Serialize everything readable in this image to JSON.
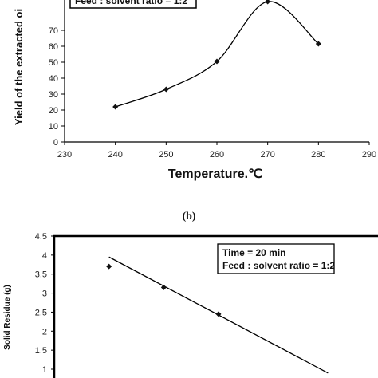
{
  "chart_data": [
    {
      "type": "line",
      "x": [
        240,
        250,
        260,
        270,
        280
      ],
      "series": [
        {
          "values": [
            22,
            33,
            50.5,
            88,
            61.5
          ]
        }
      ],
      "xlabel": "Temperature.℃",
      "ylabel": "Yield of the extracted oi",
      "xlim": [
        230,
        290
      ],
      "ylim": [
        0,
        80
      ],
      "xticks": [
        "230",
        "240",
        "250",
        "260",
        "270",
        "280",
        "290"
      ],
      "yticks": [
        "0",
        "10",
        "20",
        "30",
        "40",
        "50",
        "60",
        "70"
      ],
      "legend_text": "Feed : solvent ratio = 1:2",
      "grid": false
    },
    {
      "type": "scatter",
      "x": [
        250,
        260,
        270
      ],
      "series": [
        {
          "values": [
            3.7,
            3.15,
            2.45
          ]
        }
      ],
      "trendline": {
        "x": [
          250,
          290
        ],
        "y": [
          3.95,
          0.9
        ]
      },
      "ylabel": "Solid Residue (g)",
      "xlim": [
        240,
        300
      ],
      "ylim": [
        0.8,
        4.5
      ],
      "yticks": [
        "1",
        "1.5",
        "2",
        "2.5",
        "3",
        "3.5",
        "4",
        "4.5"
      ],
      "legend": [
        "Time = 20 min",
        "Feed : solvent ratio = 1:2"
      ],
      "grid": false
    }
  ],
  "panel_label": "(b)"
}
